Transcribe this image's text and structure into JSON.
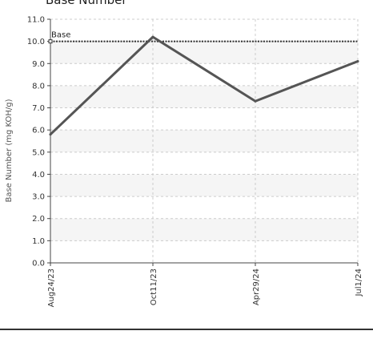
{
  "chart_data": {
    "type": "line",
    "title": "Base Number",
    "ylabel": "Base Number (mg KOH/g)",
    "xlabel": "",
    "categories": [
      "Aug24/23",
      "Oct11/23",
      "Apr29/24",
      "Jul1/24"
    ],
    "series": [
      {
        "values": [
          5.8,
          10.2,
          7.3,
          9.1
        ]
      }
    ],
    "ylim": [
      0.0,
      11.0
    ],
    "yticks": [
      "0.0",
      "1.0",
      "2.0",
      "3.0",
      "4.0",
      "5.0",
      "6.0",
      "7.0",
      "8.0",
      "9.0",
      "10.0",
      "11.0"
    ],
    "reference_line": {
      "label": "Base",
      "value": 10.0
    },
    "grid": true,
    "colors": {
      "series": "#555555",
      "reference": "#333333",
      "grid": "#cccccc",
      "band": "#f5f5f5"
    }
  }
}
